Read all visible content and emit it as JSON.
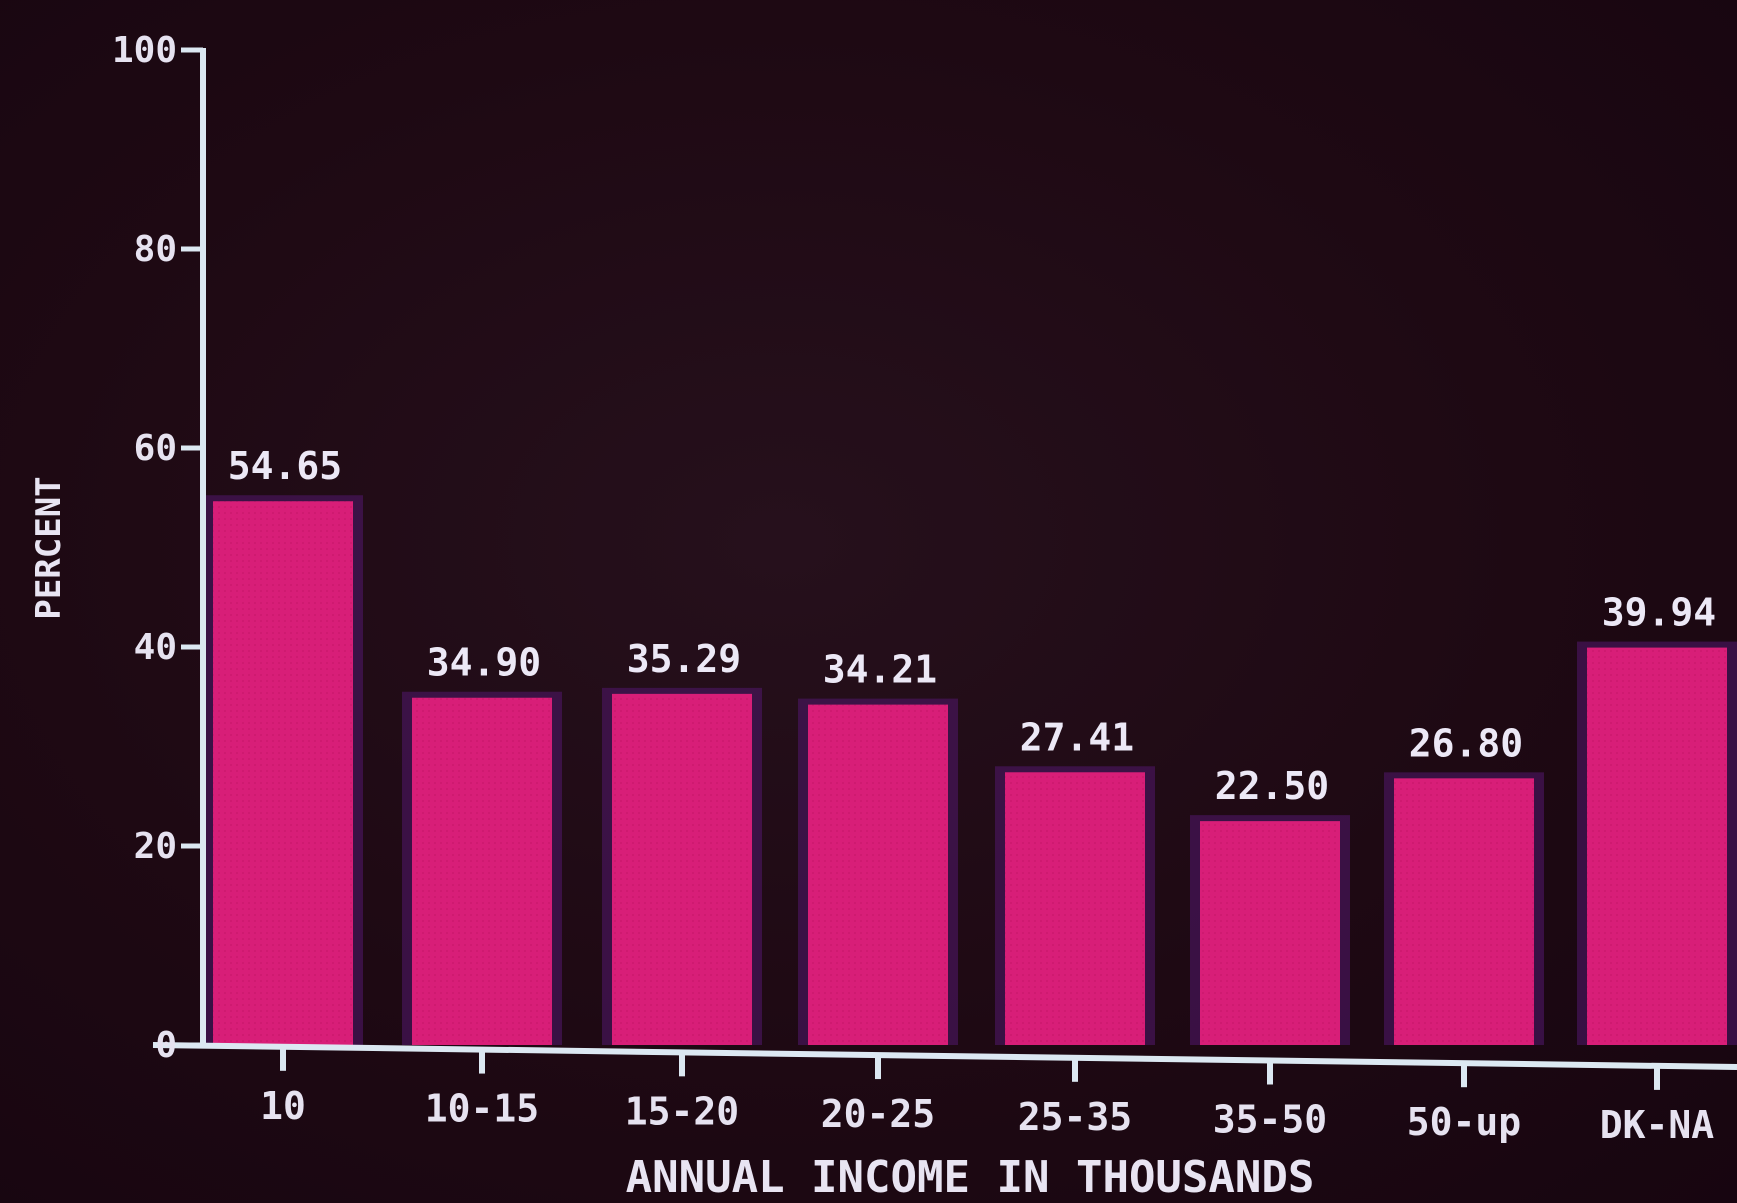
{
  "chart_data": {
    "type": "bar",
    "title": "",
    "xlabel": "ANNUAL INCOME IN THOUSANDS",
    "ylabel": "PERCENT",
    "ylim": [
      0,
      100
    ],
    "y_ticks": [
      0,
      20,
      40,
      60,
      80,
      100
    ],
    "y_tick_labels": [
      "0",
      "20",
      "40",
      "60",
      "80",
      "100"
    ],
    "categories": [
      "10",
      "10-15",
      "15-20",
      "20-25",
      "25-35",
      "35-50",
      "50-up",
      "DK-NA"
    ],
    "values": [
      54.65,
      34.9,
      35.29,
      34.21,
      27.41,
      22.5,
      26.8,
      39.94
    ],
    "value_labels": [
      "54.65",
      "34.90",
      "35.29",
      "34.21",
      "27.41",
      "22.50",
      "26.80",
      "39.94"
    ],
    "grid": false,
    "colors": {
      "bar": "#d81e78",
      "bar_glow": "#52176e",
      "axis": "#dce8f2",
      "text": "#e6e2f0",
      "background": "#1c0710"
    }
  }
}
